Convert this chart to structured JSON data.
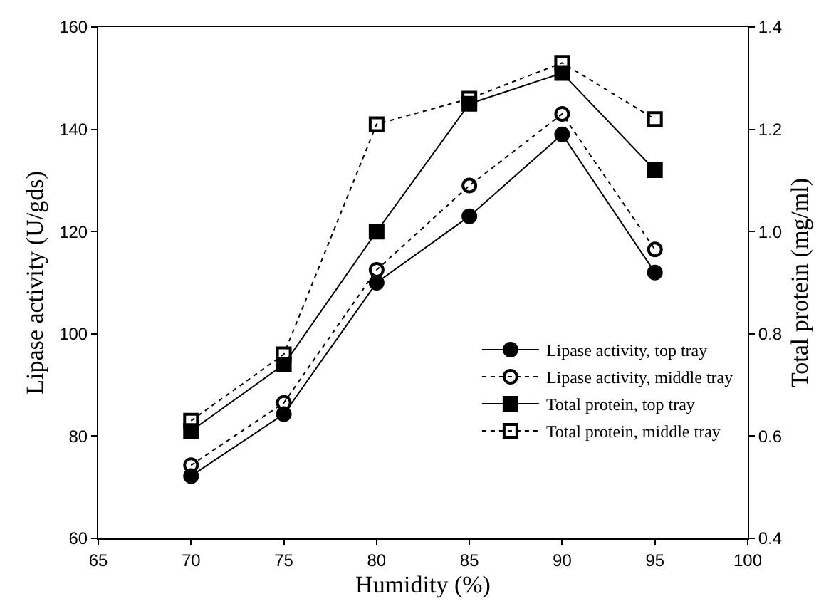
{
  "chart_data": {
    "type": "line",
    "xlabel": "Humidity (%)",
    "ylabel": "Lipase activity (U/gds)",
    "y2label": "Total protein (mg/ml)",
    "x": [
      70,
      75,
      80,
      85,
      90,
      95
    ],
    "xlim": [
      65,
      100
    ],
    "xticks": [
      65,
      70,
      75,
      80,
      85,
      90,
      95,
      100
    ],
    "ylim": [
      60,
      160
    ],
    "yticks": [
      60,
      80,
      100,
      120,
      140,
      160
    ],
    "y2lim": [
      0.4,
      1.4
    ],
    "y2ticks": [
      0.4,
      0.6,
      0.8,
      {
        "value": 1,
        "label": "1.0"
      },
      1.2,
      1.4
    ],
    "grid": false,
    "legend": "bottom right",
    "series": [
      {
        "name": "Lipase activity, top tray",
        "color": "#000000",
        "marker": "circle",
        "line_style": "solid",
        "values": [
          72.2,
          84.3,
          110,
          123,
          139,
          112
        ]
      },
      {
        "name": "Lipase activity, middle tray",
        "color": "#000000",
        "marker": "circle",
        "line_style": "dotted",
        "values": [
          74.3,
          86.5,
          112.5,
          129,
          143,
          116.5
        ]
      },
      {
        "name": "Total protein, top tray",
        "color": "#000000",
        "marker": "square",
        "line_style": "solid",
        "axis": "y2",
        "values": [
          0.61,
          0.74,
          1.0,
          1.25,
          1.31,
          1.12
        ]
      },
      {
        "name": "Total protein, middle tray",
        "color": "#000000",
        "marker": "square",
        "line_style": "dotted",
        "axis": "y2",
        "values": [
          0.63,
          0.76,
          1.21,
          1.26,
          1.33,
          1.22
        ]
      }
    ]
  }
}
